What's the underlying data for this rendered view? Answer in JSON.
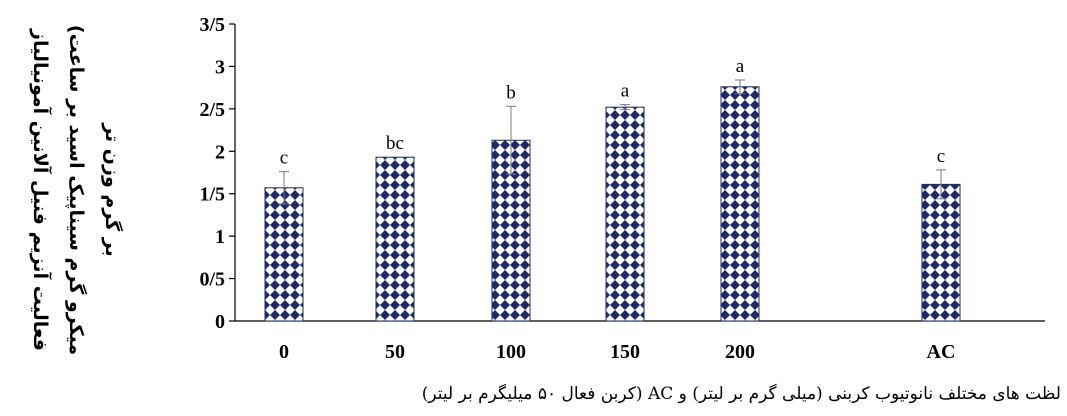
{
  "chart_data": {
    "type": "bar",
    "categories": [
      "0",
      "50",
      "100",
      "150",
      "200",
      "AC"
    ],
    "values": [
      1.57,
      1.93,
      2.13,
      2.52,
      2.76,
      1.61
    ],
    "errors": [
      0.19,
      0.0,
      0.4,
      0.03,
      0.08,
      0.17
    ],
    "significance": [
      "c",
      "bc",
      "b",
      "a",
      "a",
      "c"
    ],
    "yticks": [
      "0",
      "0/5",
      "1",
      "1/5",
      "2",
      "2/5",
      "3",
      "3/5"
    ],
    "ylim": [
      0,
      3.5
    ],
    "ylabel_lines": [
      "فعالیت آنزیم فنیل آلانین آمونیالیاز",
      "(میکرو گرم سیناپیک اسید بر ساعت",
      "بر گرم وزن تر"
    ],
    "xlabel": "لظت های مختلف نانوتیوب کربنی (میلی گرم بر لیتر) و AC (کربن فعال ۵۰ میلیگرم بر لیتر)",
    "bar_fill": "#1f2a6b",
    "bar_pattern": "diamond checker (dark navy on white)"
  }
}
